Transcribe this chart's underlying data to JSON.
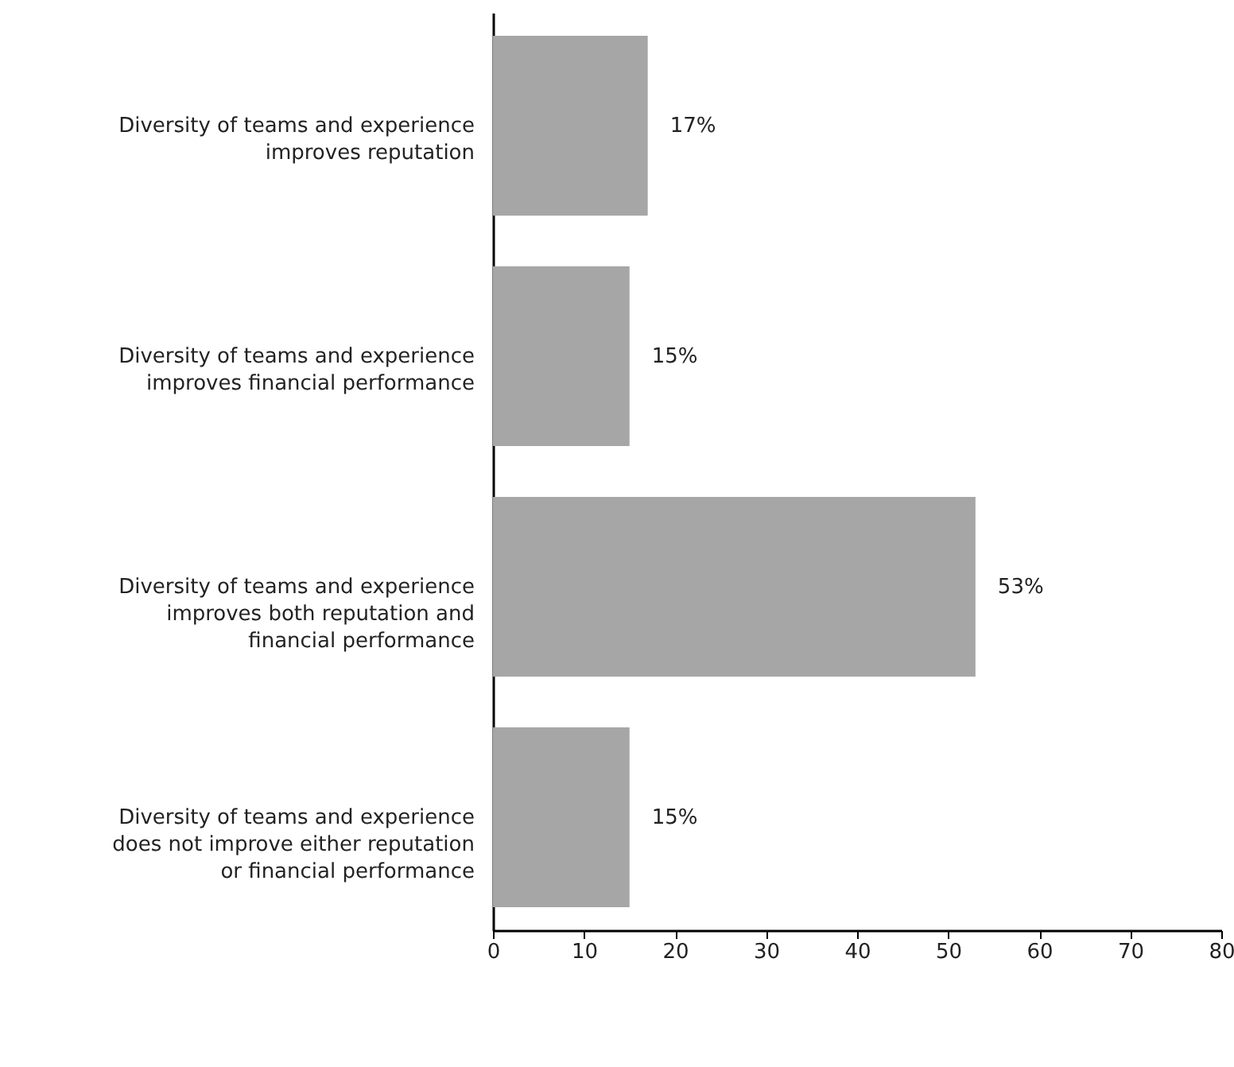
{
  "chart_data": {
    "type": "bar",
    "orientation": "horizontal",
    "categories": [
      "Diversity of teams and experience improves reputation",
      "Diversity of teams and experience improves financial performance",
      "Diversity of teams and experience improves both reputation and financial performance",
      "Diversity of teams and experience does not improve either reputation or financial performance"
    ],
    "values": [
      17,
      15,
      53,
      15
    ],
    "color": "#a6a6a6",
    "data_labels": true,
    "value_labels": [
      "17%",
      "15%",
      "53%",
      "15%"
    ],
    "xlim": [
      0,
      80
    ],
    "xticks": [
      0,
      10,
      20,
      30,
      40,
      50,
      60,
      70,
      80
    ],
    "grid": false
  }
}
